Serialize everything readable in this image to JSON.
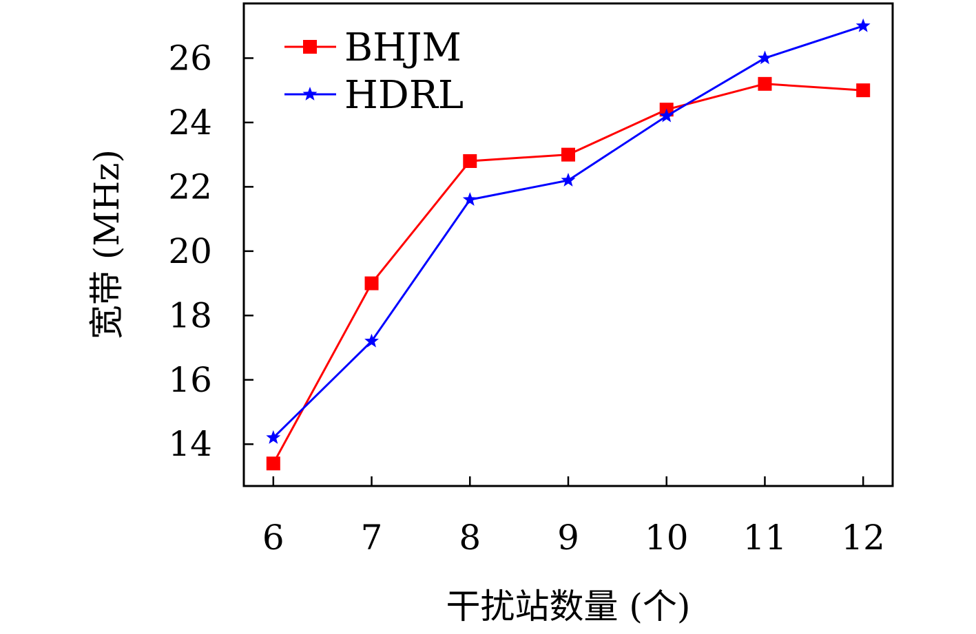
{
  "chart_data": {
    "type": "line",
    "title": "",
    "xlabel": "干扰站数量 (个)",
    "ylabel": "宽带 (MHz)",
    "x": [
      6,
      7,
      8,
      9,
      10,
      11,
      12
    ],
    "xticks": [
      "6",
      "7",
      "8",
      "9",
      "10",
      "11",
      "12"
    ],
    "yticks": [
      "14",
      "16",
      "18",
      "20",
      "22",
      "24",
      "26"
    ],
    "xlim": [
      5.7,
      12.3
    ],
    "ylim": [
      12.7,
      27.7
    ],
    "grid": false,
    "legend_position": "top-left",
    "series": [
      {
        "name": "BHJM",
        "color": "#ff0000",
        "marker": "square",
        "values": [
          13.4,
          19.0,
          22.8,
          23.0,
          24.4,
          25.2,
          25.0
        ]
      },
      {
        "name": "HDRL",
        "color": "#0000ff",
        "marker": "star",
        "values": [
          14.2,
          17.2,
          21.6,
          22.2,
          24.2,
          26.0,
          27.0
        ]
      }
    ]
  }
}
